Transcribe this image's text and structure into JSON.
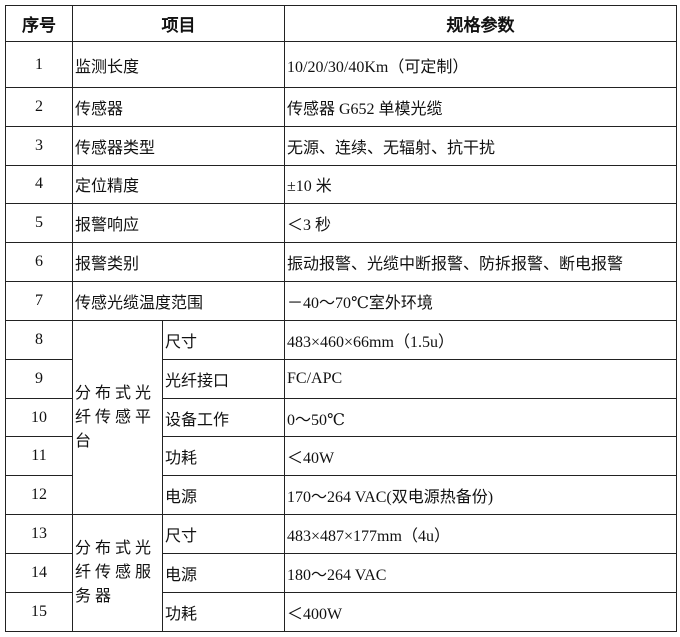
{
  "headers": {
    "no": "序号",
    "item": "项目",
    "spec": "规格参数"
  },
  "rows": [
    {
      "no": "1",
      "item": "监测长度",
      "spec": "10/20/30/40Km（可定制）"
    },
    {
      "no": "2",
      "item": "传感器",
      "spec": "传感器 G652 单模光缆"
    },
    {
      "no": "3",
      "item": "传感器类型",
      "spec": "无源、连续、无辐射、抗干扰"
    },
    {
      "no": "4",
      "item": "定位精度",
      "spec": "±10 米"
    },
    {
      "no": "5",
      "item": "报警响应",
      "spec": "＜3 秒"
    },
    {
      "no": "6",
      "item": "报警类别",
      "spec": "振动报警、光缆中断报警、防拆报警、断电报警"
    },
    {
      "no": "7",
      "item": "传感光缆温度范围",
      "spec": "－40～70℃室外环境"
    }
  ],
  "groups": [
    {
      "name": "分布式光纤传感平台",
      "rows": [
        {
          "no": "8",
          "item": "尺寸",
          "spec": "483×460×66mm（1.5u）"
        },
        {
          "no": "9",
          "item": "光纤接口",
          "spec": "FC/APC"
        },
        {
          "no": "10",
          "item": "设备工作",
          "spec": "0～50℃"
        },
        {
          "no": "11",
          "item": "功耗",
          "spec": "＜40W"
        },
        {
          "no": "12",
          "item": "电源",
          "spec": "170～264 VAC(双电源热备份)"
        }
      ]
    },
    {
      "name": "分布式光纤传感服务器",
      "rows": [
        {
          "no": "13",
          "item": "尺寸",
          "spec": "483×487×177mm（4u）"
        },
        {
          "no": "14",
          "item": "电源",
          "spec": "180～264 VAC"
        },
        {
          "no": "15",
          "item": "功耗",
          "spec": "＜400W"
        }
      ]
    }
  ]
}
